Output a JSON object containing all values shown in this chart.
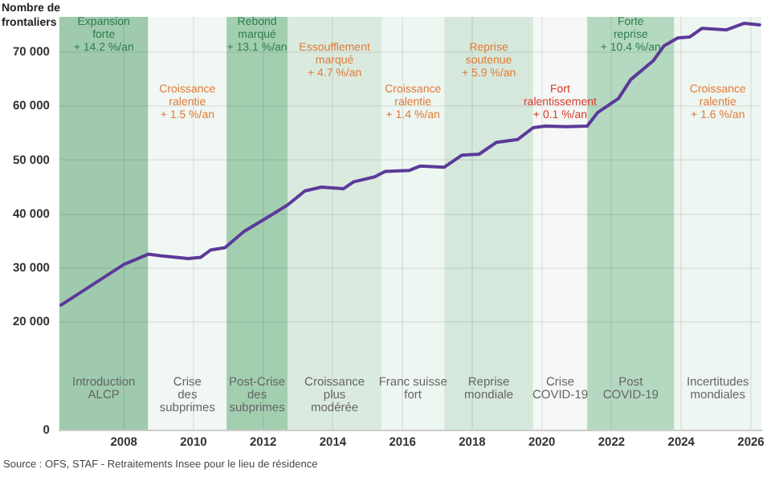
{
  "chart_data": {
    "type": "line",
    "ylabel": "Nombre de\nfrontaliers",
    "marker": "none",
    "line_style": "solid",
    "grid": true,
    "x": [
      2006.2,
      2008.0,
      2008.7,
      2009.06,
      2009.85,
      2010.2,
      2010.5,
      2010.9,
      2011.45,
      2012.15,
      2012.7,
      2013.2,
      2013.67,
      2014.3,
      2014.6,
      2015.2,
      2015.5,
      2016.2,
      2016.5,
      2017.2,
      2017.7,
      2018.2,
      2018.7,
      2019.3,
      2019.75,
      2020.1,
      2020.7,
      2021.3,
      2021.6,
      2022.2,
      2022.55,
      2023.2,
      2023.5,
      2023.9,
      2024.25,
      2024.6,
      2025.3,
      2025.8,
      2026.25
    ],
    "series": [
      {
        "color": "#5b3a99",
        "values": [
          23200,
          30700,
          32600,
          32300,
          31800,
          32000,
          33400,
          33800,
          36800,
          39500,
          41700,
          44300,
          45000,
          44700,
          46000,
          46900,
          47900,
          48100,
          48900,
          48700,
          50900,
          51100,
          53300,
          53800,
          56000,
          56300,
          56200,
          56300,
          58800,
          61400,
          64900,
          68400,
          71100,
          72600,
          72800,
          74400,
          74100,
          75300,
          75000
        ]
      }
    ],
    "xlim": [
      2006.15,
      2026.3
    ],
    "xticks": [
      2008,
      2010,
      2012,
      2014,
      2016,
      2018,
      2020,
      2022,
      2024,
      2026
    ],
    "ylim": [
      0,
      76500
    ],
    "yticks": [
      0,
      20000,
      30000,
      40000,
      50000,
      60000,
      70000
    ],
    "bands": [
      {
        "axis": "x",
        "from": 2006.15,
        "to": 2008.7,
        "label": "Introduction\nALCP",
        "color": "#9fcaad"
      },
      {
        "axis": "x",
        "from": 2008.7,
        "to": 2010.95,
        "label": "Crise\ndes\nsubprimes",
        "color": "#f1f7f3"
      },
      {
        "axis": "x",
        "from": 2010.95,
        "to": 2012.7,
        "label": "Post-Crise\ndes\nsubprimes",
        "color": "#a3cfb1"
      },
      {
        "axis": "x",
        "from": 2012.7,
        "to": 2015.4,
        "label": "Croissance\nplus\nmodérée",
        "color": "#dbeadf"
      },
      {
        "axis": "x",
        "from": 2015.4,
        "to": 2017.2,
        "label": "Franc suisse\nfort",
        "color": "#eef6f1"
      },
      {
        "axis": "x",
        "from": 2017.2,
        "to": 2019.75,
        "label": "Reprise\nmondiale",
        "color": "#d5e8db"
      },
      {
        "axis": "x",
        "from": 2019.75,
        "to": 2021.3,
        "label": "Crise\nCOVID-19",
        "color": "#f5f8f6"
      },
      {
        "axis": "x",
        "from": 2021.3,
        "to": 2023.8,
        "label": "Post\nCOVID-19",
        "color": "#b5d9c0"
      },
      {
        "axis": "x",
        "from": 2023.8,
        "to": 2026.3,
        "label": "Incertitudes\nmondiales",
        "color": "#eef6f1"
      }
    ],
    "annotations": [
      "Expansion\nforte\n+ 14.2 %/an",
      "Croissance\nralentie\n+ 1.5 %/an",
      "Rebond\nmarqué\n+ 13.1 %/an",
      "Essoufflement\nmarqué\n+ 4.7 %/an",
      "Croissance\nralentie\n+ 1.4 %/an",
      "Reprise\nsoutenue\n+ 5.9 %/an",
      "Fort\nralentissement\n+ 0.1 %/an",
      "Forte\nreprise\n+ 10.4 %/an",
      "Croissance\nralentie\n+ 1.6 %/an",
      "Source : OFS, STAF - Retraitements Insee pour le lieu de résidence"
    ]
  }
}
